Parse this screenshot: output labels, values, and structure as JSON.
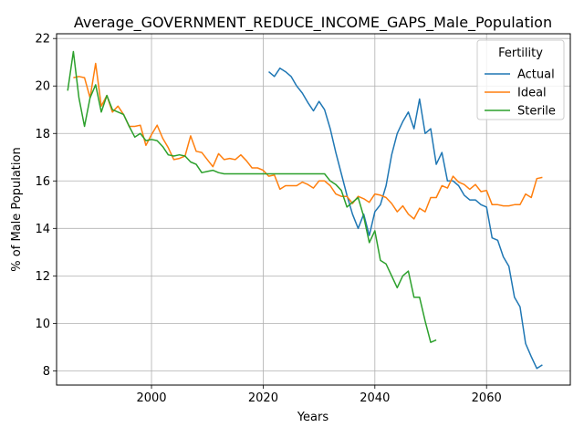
{
  "chart_data": {
    "type": "line",
    "title": "Average_GOVERNMENT_REDUCE_INCOME_GAPS_Male_Population",
    "xlabel": "Years",
    "ylabel": "% of Male Population",
    "xlim": [
      1983,
      2075
    ],
    "ylim": [
      7.4,
      22.2
    ],
    "xticks": [
      2000,
      2020,
      2040,
      2060
    ],
    "yticks": [
      8,
      10,
      12,
      14,
      16,
      18,
      20,
      22
    ],
    "grid": true,
    "legend": {
      "title": "Fertility",
      "placement": "top-right"
    },
    "series": [
      {
        "name": "Actual",
        "color": "#1f77b4",
        "x": [
          2021,
          2022,
          2023,
          2024,
          2025,
          2026,
          2027,
          2028,
          2029,
          2030,
          2031,
          2032,
          2033,
          2034,
          2035,
          2036,
          2037,
          2038,
          2039,
          2040,
          2041,
          2042,
          2043,
          2044,
          2045,
          2046,
          2047,
          2048,
          2049,
          2050,
          2051,
          2052,
          2053,
          2054,
          2055,
          2056,
          2057,
          2058,
          2059,
          2060,
          2061,
          2062,
          2063,
          2064,
          2065,
          2066,
          2067,
          2068,
          2069,
          2070
        ],
        "y": [
          20.6,
          20.4,
          20.75,
          20.6,
          20.4,
          20.0,
          19.7,
          19.3,
          18.95,
          19.35,
          19.0,
          18.2,
          17.2,
          16.3,
          15.4,
          14.6,
          14.0,
          14.6,
          13.7,
          14.7,
          15.0,
          15.8,
          17.1,
          18.0,
          18.5,
          18.9,
          18.2,
          19.45,
          18.0,
          18.2,
          16.7,
          17.2,
          16.0,
          16.0,
          15.8,
          15.4,
          15.2,
          15.2,
          15.0,
          14.9,
          13.6,
          13.5,
          12.8,
          12.4,
          11.1,
          10.7,
          9.15,
          8.6,
          8.1,
          8.25
        ]
      },
      {
        "name": "Ideal",
        "color": "#ff7f0e",
        "x": [
          1986,
          1987,
          1988,
          1989,
          1990,
          1991,
          1992,
          1993,
          1994,
          1995,
          1996,
          1997,
          1998,
          1999,
          2000,
          2001,
          2002,
          2003,
          2004,
          2005,
          2006,
          2007,
          2008,
          2009,
          2010,
          2011,
          2012,
          2013,
          2014,
          2015,
          2016,
          2017,
          2018,
          2019,
          2020,
          2021,
          2022,
          2023,
          2024,
          2025,
          2026,
          2027,
          2028,
          2029,
          2030,
          2031,
          2032,
          2033,
          2034,
          2035,
          2036,
          2037,
          2038,
          2039,
          2040,
          2041,
          2042,
          2043,
          2044,
          2045,
          2046,
          2047,
          2048,
          2049,
          2050,
          2051,
          2052,
          2053,
          2054,
          2055,
          2056,
          2057,
          2058,
          2059,
          2060,
          2061,
          2062,
          2063,
          2064,
          2065,
          2066,
          2067,
          2068,
          2069,
          2070
        ],
        "y": [
          20.35,
          20.4,
          20.35,
          19.5,
          20.95,
          19.15,
          19.6,
          18.9,
          19.15,
          18.8,
          18.3,
          18.3,
          18.35,
          17.5,
          17.95,
          18.35,
          17.8,
          17.4,
          16.9,
          16.95,
          17.05,
          17.9,
          17.25,
          17.2,
          16.9,
          16.6,
          17.15,
          16.9,
          16.95,
          16.9,
          17.1,
          16.85,
          16.55,
          16.55,
          16.45,
          16.2,
          16.25,
          15.65,
          15.8,
          15.8,
          15.8,
          15.95,
          15.85,
          15.7,
          16.0,
          16.0,
          15.8,
          15.45,
          15.35,
          15.35,
          15.05,
          15.35,
          15.25,
          15.1,
          15.45,
          15.4,
          15.3,
          15.05,
          14.7,
          14.95,
          14.6,
          14.4,
          14.85,
          14.7,
          15.3,
          15.3,
          15.8,
          15.7,
          16.2,
          15.95,
          15.85,
          15.65,
          15.85,
          15.55,
          15.6,
          15.0,
          15.0,
          14.95,
          14.95,
          15.0,
          15.0,
          15.45,
          15.3,
          16.1,
          16.15
        ]
      },
      {
        "name": "Sterile",
        "color": "#2ca02c",
        "x": [
          1985,
          1986,
          1987,
          1988,
          1989,
          1990,
          1991,
          1992,
          1993,
          1994,
          1995,
          1996,
          1997,
          1998,
          1999,
          2000,
          2001,
          2002,
          2003,
          2004,
          2005,
          2006,
          2007,
          2008,
          2009,
          2010,
          2011,
          2012,
          2013,
          2014,
          2015,
          2016,
          2017,
          2018,
          2019,
          2020,
          2021,
          2022,
          2023,
          2024,
          2025,
          2026,
          2027,
          2028,
          2029,
          2030,
          2031,
          2032,
          2033,
          2034,
          2035,
          2036,
          2037,
          2038,
          2039,
          2040,
          2041,
          2042,
          2043,
          2044,
          2045,
          2046,
          2047,
          2048,
          2049,
          2050,
          2051
        ],
        "y": [
          19.8,
          21.45,
          19.5,
          18.3,
          19.5,
          20.05,
          18.9,
          19.6,
          19.0,
          18.9,
          18.8,
          18.3,
          17.85,
          18.0,
          17.7,
          17.75,
          17.7,
          17.45,
          17.1,
          17.05,
          17.1,
          17.05,
          16.8,
          16.7,
          16.35,
          16.4,
          16.45,
          16.35,
          16.3,
          16.3,
          16.3,
          16.3,
          16.3,
          16.3,
          16.3,
          16.3,
          16.3,
          16.3,
          16.3,
          16.3,
          16.3,
          16.3,
          16.3,
          16.3,
          16.3,
          16.3,
          16.3,
          16.0,
          15.85,
          15.6,
          14.9,
          15.1,
          15.3,
          14.5,
          13.4,
          13.9,
          12.65,
          12.5,
          12.0,
          11.5,
          12.0,
          12.2,
          11.1,
          11.1,
          10.1,
          9.2,
          9.3
        ]
      }
    ]
  }
}
